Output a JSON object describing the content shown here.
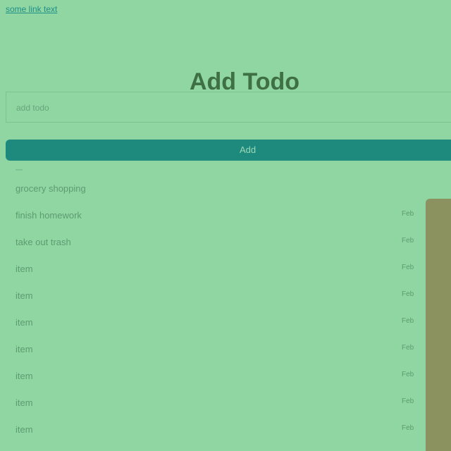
{
  "nav": {
    "top_link": "some link text"
  },
  "header": {
    "title": "Add Todo"
  },
  "form": {
    "input_placeholder": "add todo",
    "add_button_label": "Add"
  },
  "todos": {
    "items": [
      {
        "text": "grocery shopping",
        "date": ""
      },
      {
        "text": "finish homework",
        "date": "Feb"
      },
      {
        "text": "take out trash",
        "date": "Feb"
      },
      {
        "text": "item",
        "date": "Feb"
      },
      {
        "text": "item",
        "date": "Feb"
      },
      {
        "text": "item",
        "date": "Feb"
      },
      {
        "text": "item",
        "date": "Feb"
      },
      {
        "text": "item",
        "date": "Feb"
      },
      {
        "text": "item",
        "date": "Feb"
      },
      {
        "text": "item",
        "date": "Feb"
      }
    ]
  },
  "colors": {
    "background": "#8fd6a3",
    "accent": "#1e8a7e",
    "side_panel": "#8c9160"
  }
}
